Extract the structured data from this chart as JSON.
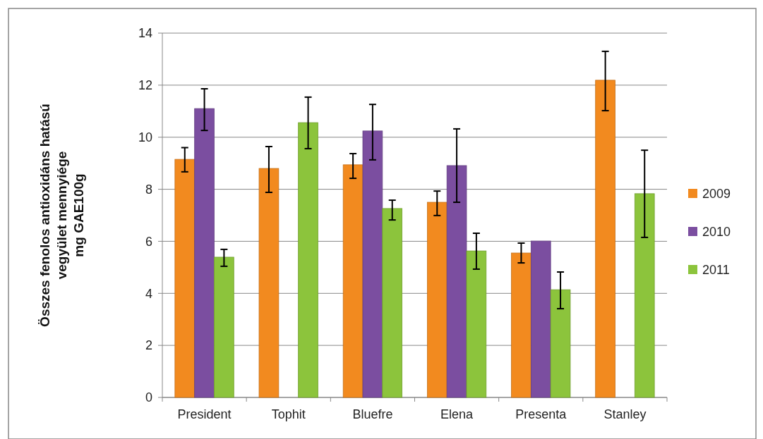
{
  "chart_data": {
    "type": "bar",
    "ylabel": "Összes fenolos antioxidáns hatású\nvegyület mennyiége\nmg GAE100g",
    "categories": [
      "President",
      "Tophit",
      "Bluefre",
      "Elena",
      "Presenta",
      "Stanley"
    ],
    "series": [
      {
        "name": "2009",
        "color": "#f28a1f",
        "values": [
          9.15,
          8.8,
          8.94,
          7.5,
          5.55,
          12.19
        ],
        "errors": [
          [
            8.67,
            9.6
          ],
          [
            7.88,
            9.64
          ],
          [
            8.42,
            9.37
          ],
          [
            6.99,
            7.93
          ],
          [
            5.17,
            5.93
          ],
          [
            11.02,
            13.3
          ]
        ]
      },
      {
        "name": "2010",
        "color": "#7b4ea0",
        "values": [
          11.1,
          null,
          10.24,
          8.91,
          6.01,
          null
        ],
        "errors": [
          [
            10.26,
            11.86
          ],
          null,
          [
            9.13,
            11.26
          ],
          [
            7.5,
            10.32
          ],
          null,
          null
        ]
      },
      {
        "name": "2011",
        "color": "#8cc43c",
        "values": [
          5.39,
          10.56,
          7.26,
          5.63,
          4.14,
          7.83
        ],
        "errors": [
          [
            5.04,
            5.69
          ],
          [
            9.56,
            11.54
          ],
          [
            6.82,
            7.58
          ],
          [
            4.93,
            6.31
          ],
          [
            3.41,
            4.82
          ],
          [
            6.15,
            9.5
          ]
        ]
      }
    ],
    "ylim": [
      0,
      14
    ],
    "yticks": [
      0,
      2,
      4,
      6,
      8,
      10,
      12,
      14
    ],
    "grid": "y",
    "legend": "right"
  }
}
